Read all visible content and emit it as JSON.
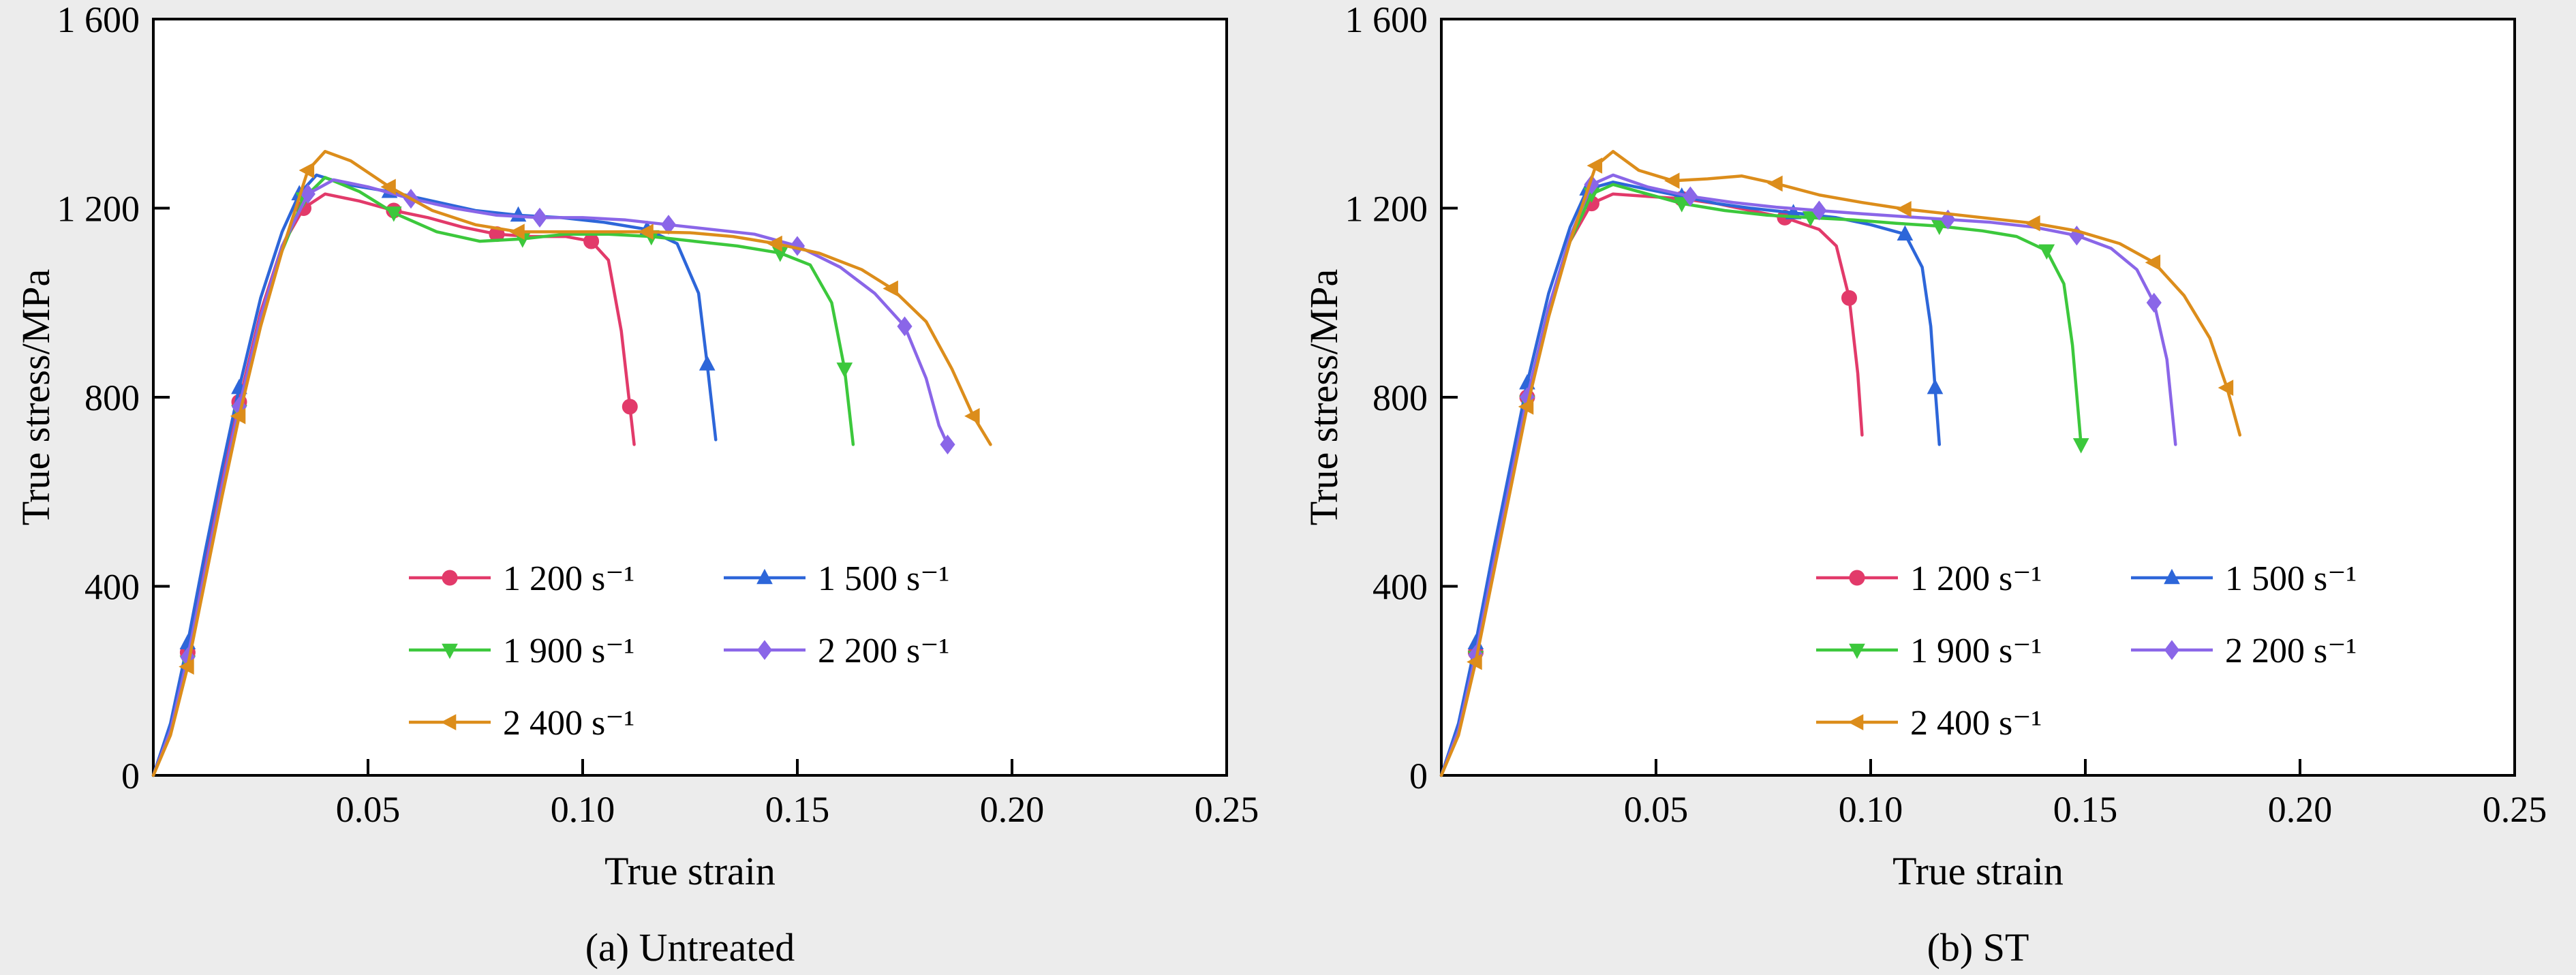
{
  "page": {
    "background": "#ececec",
    "frame_color": "#000000",
    "plot_fill": "#ffffff"
  },
  "chart_data": [
    {
      "type": "line",
      "caption": "(a) Untreated",
      "xlabel": "True strain",
      "ylabel": "True stress/MPa",
      "xlim": [
        0,
        0.25
      ],
      "ylim": [
        0,
        1600
      ],
      "grid": false,
      "legend_position": "lower-center-inside",
      "xticks": {
        "values": [
          0.05,
          0.1,
          0.15,
          0.2,
          0.25
        ],
        "labels": [
          "0.05",
          "0.10",
          "0.15",
          "0.20",
          "0.25"
        ]
      },
      "yticks": {
        "values": [
          0,
          400,
          800,
          1200,
          1600
        ],
        "labels": [
          "0",
          "400",
          "800",
          "1 200",
          "1 600"
        ]
      },
      "series": [
        {
          "name": "1 200 s⁻¹",
          "color": "#e23a6a",
          "marker": "circle",
          "x": [
            0,
            0.004,
            0.008,
            0.012,
            0.016,
            0.02,
            0.025,
            0.03,
            0.035,
            0.04,
            0.048,
            0.056,
            0.064,
            0.072,
            0.08,
            0.088,
            0.096,
            0.102,
            0.106,
            0.109,
            0.111,
            0.112
          ],
          "y": [
            0,
            100,
            260,
            440,
            620,
            790,
            980,
            1120,
            1200,
            1230,
            1215,
            1195,
            1180,
            1160,
            1145,
            1140,
            1140,
            1130,
            1090,
            940,
            780,
            700
          ]
        },
        {
          "name": "1 500 s⁻¹",
          "color": "#2d66d9",
          "marker": "triangle-up",
          "x": [
            0,
            0.004,
            0.008,
            0.012,
            0.016,
            0.02,
            0.025,
            0.03,
            0.034,
            0.038,
            0.045,
            0.055,
            0.065,
            0.075,
            0.085,
            0.095,
            0.105,
            0.115,
            0.122,
            0.127,
            0.129,
            0.131
          ],
          "y": [
            0,
            110,
            280,
            470,
            650,
            820,
            1010,
            1150,
            1230,
            1270,
            1250,
            1235,
            1215,
            1195,
            1185,
            1180,
            1170,
            1155,
            1125,
            1020,
            870,
            710
          ]
        },
        {
          "name": "1 900 s⁻¹",
          "color": "#3cc83c",
          "marker": "triangle-down",
          "x": [
            0,
            0.004,
            0.008,
            0.012,
            0.016,
            0.02,
            0.025,
            0.03,
            0.035,
            0.04,
            0.048,
            0.056,
            0.066,
            0.076,
            0.086,
            0.096,
            0.106,
            0.116,
            0.126,
            0.136,
            0.146,
            0.153,
            0.158,
            0.161,
            0.163
          ],
          "y": [
            0,
            90,
            240,
            420,
            600,
            770,
            960,
            1110,
            1220,
            1265,
            1235,
            1190,
            1150,
            1130,
            1135,
            1145,
            1145,
            1140,
            1130,
            1120,
            1105,
            1080,
            1000,
            860,
            700
          ]
        },
        {
          "name": "2 200 s⁻¹",
          "color": "#8a66e8",
          "marker": "diamond",
          "x": [
            0,
            0.004,
            0.008,
            0.012,
            0.016,
            0.02,
            0.025,
            0.03,
            0.036,
            0.042,
            0.05,
            0.06,
            0.07,
            0.08,
            0.09,
            0.1,
            0.11,
            0.12,
            0.13,
            0.14,
            0.15,
            0.16,
            0.168,
            0.175,
            0.18,
            0.183,
            0.185
          ],
          "y": [
            0,
            95,
            250,
            430,
            610,
            780,
            970,
            1120,
            1230,
            1260,
            1245,
            1220,
            1200,
            1185,
            1180,
            1180,
            1175,
            1165,
            1155,
            1145,
            1120,
            1075,
            1020,
            950,
            840,
            740,
            700
          ]
        },
        {
          "name": "2 400 s⁻¹",
          "color": "#dc8d1b",
          "marker": "triangle-left",
          "x": [
            0,
            0.004,
            0.008,
            0.012,
            0.016,
            0.02,
            0.025,
            0.03,
            0.036,
            0.04,
            0.046,
            0.055,
            0.065,
            0.075,
            0.085,
            0.095,
            0.105,
            0.115,
            0.125,
            0.135,
            0.145,
            0.155,
            0.165,
            0.172,
            0.18,
            0.186,
            0.191,
            0.195
          ],
          "y": [
            0,
            85,
            230,
            410,
            590,
            760,
            950,
            1110,
            1280,
            1320,
            1300,
            1245,
            1195,
            1165,
            1150,
            1150,
            1150,
            1150,
            1148,
            1140,
            1125,
            1105,
            1070,
            1030,
            960,
            860,
            760,
            700
          ]
        }
      ]
    },
    {
      "type": "line",
      "caption": "(b) ST",
      "xlabel": "True strain",
      "ylabel": "True stress/MPa",
      "xlim": [
        0,
        0.25
      ],
      "ylim": [
        0,
        1600
      ],
      "grid": false,
      "legend_position": "lower-center-inside",
      "xticks": {
        "values": [
          0.05,
          0.1,
          0.15,
          0.2,
          0.25
        ],
        "labels": [
          "0.05",
          "0.10",
          "0.15",
          "0.20",
          "0.25"
        ]
      },
      "yticks": {
        "values": [
          0,
          400,
          800,
          1200,
          1600
        ],
        "labels": [
          "0",
          "400",
          "800",
          "1 200",
          "1 600"
        ]
      },
      "series": [
        {
          "name": "1 200 s⁻¹",
          "color": "#e23a6a",
          "marker": "circle",
          "x": [
            0,
            0.004,
            0.008,
            0.012,
            0.016,
            0.02,
            0.025,
            0.03,
            0.035,
            0.04,
            0.048,
            0.056,
            0.064,
            0.072,
            0.08,
            0.088,
            0.092,
            0.095,
            0.097,
            0.098
          ],
          "y": [
            0,
            100,
            260,
            440,
            620,
            800,
            990,
            1130,
            1210,
            1230,
            1225,
            1220,
            1210,
            1195,
            1180,
            1155,
            1120,
            1010,
            850,
            720
          ]
        },
        {
          "name": "1 500 s⁻¹",
          "color": "#2d66d9",
          "marker": "triangle-up",
          "x": [
            0,
            0.004,
            0.008,
            0.012,
            0.016,
            0.02,
            0.025,
            0.03,
            0.034,
            0.04,
            0.048,
            0.056,
            0.064,
            0.072,
            0.082,
            0.092,
            0.1,
            0.108,
            0.112,
            0.114,
            0.115,
            0.116
          ],
          "y": [
            0,
            110,
            280,
            470,
            650,
            830,
            1020,
            1160,
            1240,
            1255,
            1240,
            1225,
            1210,
            1200,
            1190,
            1180,
            1165,
            1145,
            1075,
            950,
            820,
            700
          ]
        },
        {
          "name": "1 900 s⁻¹",
          "color": "#3cc83c",
          "marker": "triangle-down",
          "x": [
            0,
            0.004,
            0.008,
            0.012,
            0.016,
            0.02,
            0.025,
            0.03,
            0.035,
            0.04,
            0.048,
            0.056,
            0.066,
            0.076,
            0.086,
            0.096,
            0.106,
            0.116,
            0.126,
            0.134,
            0.141,
            0.145,
            0.147,
            0.149
          ],
          "y": [
            0,
            90,
            250,
            430,
            610,
            790,
            980,
            1130,
            1230,
            1250,
            1230,
            1210,
            1195,
            1185,
            1180,
            1175,
            1168,
            1162,
            1152,
            1140,
            1110,
            1040,
            910,
            700
          ]
        },
        {
          "name": "2 200 s⁻¹",
          "color": "#8a66e8",
          "marker": "diamond",
          "x": [
            0,
            0.004,
            0.008,
            0.012,
            0.016,
            0.02,
            0.025,
            0.03,
            0.035,
            0.04,
            0.048,
            0.058,
            0.068,
            0.078,
            0.088,
            0.098,
            0.108,
            0.118,
            0.128,
            0.138,
            0.148,
            0.156,
            0.162,
            0.166,
            0.169,
            0.171
          ],
          "y": [
            0,
            95,
            255,
            440,
            620,
            800,
            990,
            1140,
            1250,
            1270,
            1245,
            1225,
            1212,
            1202,
            1195,
            1188,
            1182,
            1176,
            1170,
            1160,
            1142,
            1115,
            1070,
            1000,
            880,
            700
          ]
        },
        {
          "name": "2 400 s⁻¹",
          "color": "#dc8d1b",
          "marker": "triangle-left",
          "x": [
            0,
            0.004,
            0.008,
            0.012,
            0.016,
            0.02,
            0.025,
            0.03,
            0.036,
            0.04,
            0.046,
            0.054,
            0.062,
            0.07,
            0.078,
            0.088,
            0.098,
            0.108,
            0.118,
            0.128,
            0.138,
            0.148,
            0.158,
            0.166,
            0.173,
            0.179,
            0.183,
            0.186
          ],
          "y": [
            0,
            85,
            240,
            420,
            600,
            780,
            970,
            1130,
            1290,
            1320,
            1280,
            1258,
            1262,
            1268,
            1252,
            1228,
            1212,
            1198,
            1188,
            1178,
            1168,
            1152,
            1125,
            1085,
            1015,
            925,
            820,
            720
          ]
        }
      ]
    }
  ]
}
